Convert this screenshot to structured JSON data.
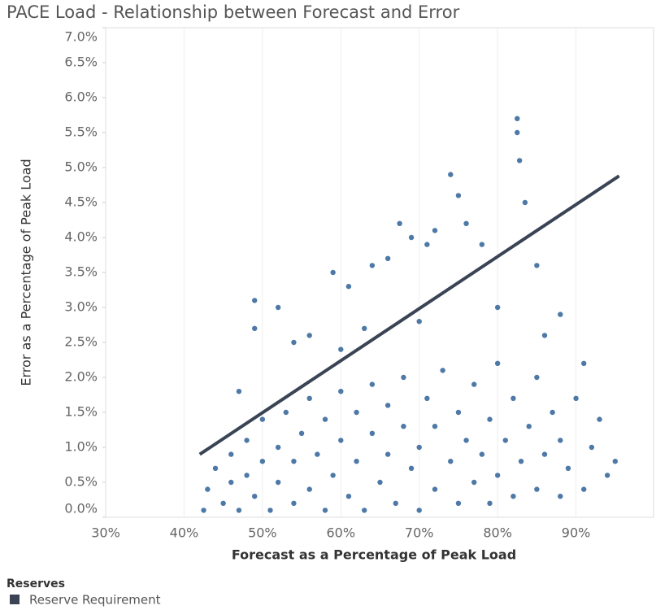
{
  "chart_data": {
    "type": "scatter",
    "title": "PACE Load - Relationship between Forecast and Error",
    "x_label": "Forecast as a Percentage of Peak Load",
    "y_label": "Error as a Percentage of Peak Load",
    "legend_title": "Reserves",
    "xlim": [
      30,
      100
    ],
    "ylim": [
      0,
      7
    ],
    "xticks": [
      {
        "value": 30,
        "label": "30%"
      },
      {
        "value": 40,
        "label": "40%"
      },
      {
        "value": 50,
        "label": "50%"
      },
      {
        "value": 60,
        "label": "60%"
      },
      {
        "value": 70,
        "label": "70%"
      },
      {
        "value": 80,
        "label": "80%"
      },
      {
        "value": 90,
        "label": "90%"
      }
    ],
    "yticks": [
      {
        "value": 0,
        "label": "0.0%"
      },
      {
        "value": 0.5,
        "label": "0.5%"
      },
      {
        "value": 1,
        "label": "1.0%"
      },
      {
        "value": 1.5,
        "label": "1.5%"
      },
      {
        "value": 2,
        "label": "2.0%"
      },
      {
        "value": 2.5,
        "label": "2.5%"
      },
      {
        "value": 3,
        "label": "3.0%"
      },
      {
        "value": 3.5,
        "label": "3.5%"
      },
      {
        "value": 4,
        "label": "4.0%"
      },
      {
        "value": 4.5,
        "label": "4.5%"
      },
      {
        "value": 5,
        "label": "5.0%"
      },
      {
        "value": 5.5,
        "label": "5.5%"
      },
      {
        "value": 6,
        "label": "6.0%"
      },
      {
        "value": 6.5,
        "label": "6.5%"
      },
      {
        "value": 7,
        "label": "7.0%"
      }
    ],
    "grid": true,
    "series": [
      {
        "type": "scatter",
        "color": "#4e79a7",
        "x": [
          42.5,
          43,
          44,
          45,
          46,
          46,
          47,
          48,
          48,
          49,
          50,
          50,
          51,
          52,
          52,
          53,
          54,
          54,
          55,
          56,
          56,
          57,
          58,
          58,
          59,
          60,
          60,
          61,
          62,
          62,
          63,
          64,
          64,
          65,
          66,
          66,
          67,
          68,
          68,
          69,
          70,
          70,
          71,
          72,
          72,
          73,
          74,
          75,
          75,
          76,
          77,
          77,
          78,
          79,
          79,
          80,
          80,
          81,
          82,
          82,
          83,
          84,
          85,
          85,
          86,
          87,
          88,
          88,
          89,
          90,
          91,
          92,
          93,
          94,
          95,
          49,
          49,
          52,
          54,
          56,
          59,
          61,
          64,
          66,
          67.5,
          69,
          71,
          72,
          74,
          75,
          76,
          78,
          82.5,
          82.5,
          82.8,
          83.5,
          85,
          88,
          91,
          60,
          70,
          80,
          86,
          47,
          63
        ],
        "values": [
          0.1,
          0.4,
          0.7,
          0.2,
          0.5,
          0.9,
          0.1,
          0.6,
          1.1,
          0.3,
          0.8,
          1.4,
          0.1,
          0.5,
          1.0,
          1.5,
          0.2,
          0.8,
          1.2,
          0.4,
          1.7,
          0.9,
          0.1,
          1.4,
          0.6,
          1.1,
          1.8,
          0.3,
          0.8,
          1.5,
          0.1,
          1.2,
          1.9,
          0.5,
          0.9,
          1.6,
          0.2,
          1.3,
          2.0,
          0.7,
          0.1,
          1.0,
          1.7,
          0.4,
          1.3,
          2.1,
          0.8,
          0.2,
          1.5,
          1.1,
          0.5,
          1.9,
          0.9,
          0.2,
          1.4,
          0.6,
          2.2,
          1.1,
          0.3,
          1.7,
          0.8,
          1.3,
          0.4,
          2.0,
          0.9,
          1.5,
          0.3,
          1.1,
          0.7,
          1.7,
          0.4,
          1.0,
          1.4,
          0.6,
          0.8,
          3.1,
          2.7,
          3.0,
          2.5,
          2.6,
          3.5,
          3.3,
          3.6,
          3.7,
          4.2,
          4.0,
          3.9,
          4.1,
          4.9,
          4.6,
          4.2,
          3.9,
          5.7,
          5.5,
          5.1,
          4.5,
          3.6,
          2.9,
          2.2,
          2.4,
          2.8,
          3.0,
          2.6,
          1.8,
          2.7
        ]
      },
      {
        "type": "line",
        "name": "Reserve Requirement",
        "color": "#3a4454",
        "x": [
          42,
          95.5
        ],
        "values": [
          0.9,
          4.88
        ]
      }
    ]
  }
}
